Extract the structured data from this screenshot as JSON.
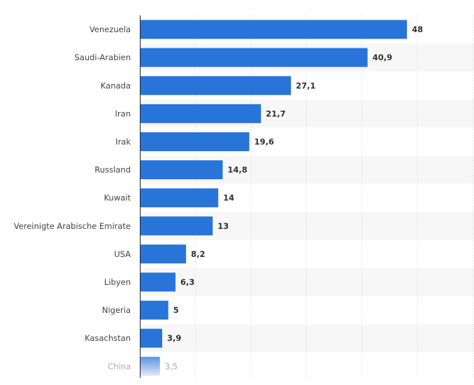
{
  "chart_data": {
    "type": "bar",
    "orientation": "horizontal",
    "categories": [
      "Venezuela",
      "Saudi-Arabien",
      "Kanada",
      "Iran",
      "Irak",
      "Russland",
      "Kuwait",
      "Vereinigte Arabische Emirate",
      "USA",
      "Libyen",
      "Nigeria",
      "Kasachstan",
      "China"
    ],
    "values": [
      48,
      40.9,
      27.1,
      21.7,
      19.6,
      14.8,
      14,
      13,
      8.2,
      6.3,
      5,
      3.9,
      3.5
    ],
    "value_labels": [
      "48",
      "40,9",
      "27,1",
      "21,7",
      "19,6",
      "14,8",
      "14",
      "13",
      "8,2",
      "6,3",
      "5",
      "3,9",
      "3,5"
    ],
    "xlim": [
      0,
      60
    ],
    "grid_step": 10,
    "grid": true,
    "bar_color": "#2874d9",
    "faded_last_row": true
  }
}
